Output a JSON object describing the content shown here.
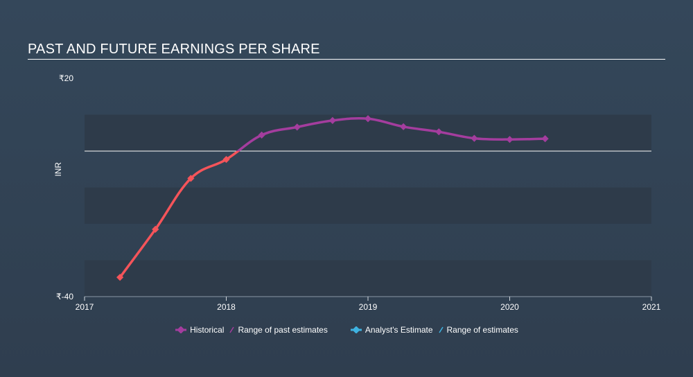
{
  "page": {
    "title": "PAST AND FUTURE EARNINGS PER SHARE"
  },
  "legend": {
    "historical": "Historical",
    "range_past": "Range of past estimates",
    "analyst": "Analyst's Estimate",
    "range_estimates": "Range of estimates"
  },
  "colors": {
    "historical_negative": "#f5545a",
    "historical_positive": "#a43d9e",
    "analyst": "#3fb2e0",
    "band": "#2e3b4a",
    "zero_line": "#ffffff"
  },
  "chart_data": {
    "type": "line",
    "title": "PAST AND FUTURE EARNINGS PER SHARE",
    "ylabel": "INR",
    "xlabel": "",
    "ylim": [
      -40,
      20
    ],
    "xlim": [
      2017,
      2021
    ],
    "y_ticks": [
      {
        "value": 20,
        "label": "₹20"
      },
      {
        "value": -40,
        "label": "₹-40"
      }
    ],
    "x_ticks": [
      {
        "value": 2017,
        "label": "2017"
      },
      {
        "value": 2018,
        "label": "2018"
      },
      {
        "value": 2019,
        "label": "2019"
      },
      {
        "value": 2020,
        "label": "2020"
      },
      {
        "value": 2021,
        "label": "2021"
      }
    ],
    "series": [
      {
        "name": "Historical",
        "points": [
          {
            "x": 2017.25,
            "y": -34.7
          },
          {
            "x": 2017.5,
            "y": -21.5
          },
          {
            "x": 2017.75,
            "y": -7.5
          },
          {
            "x": 2018.0,
            "y": -2.3
          },
          {
            "x": 2018.25,
            "y": 4.4
          },
          {
            "x": 2018.5,
            "y": 6.6
          },
          {
            "x": 2018.75,
            "y": 8.4
          },
          {
            "x": 2019.0,
            "y": 8.9
          },
          {
            "x": 2019.25,
            "y": 6.7
          },
          {
            "x": 2019.5,
            "y": 5.3
          },
          {
            "x": 2019.75,
            "y": 3.5
          },
          {
            "x": 2020.0,
            "y": 3.2
          },
          {
            "x": 2020.25,
            "y": 3.4
          }
        ]
      }
    ]
  }
}
